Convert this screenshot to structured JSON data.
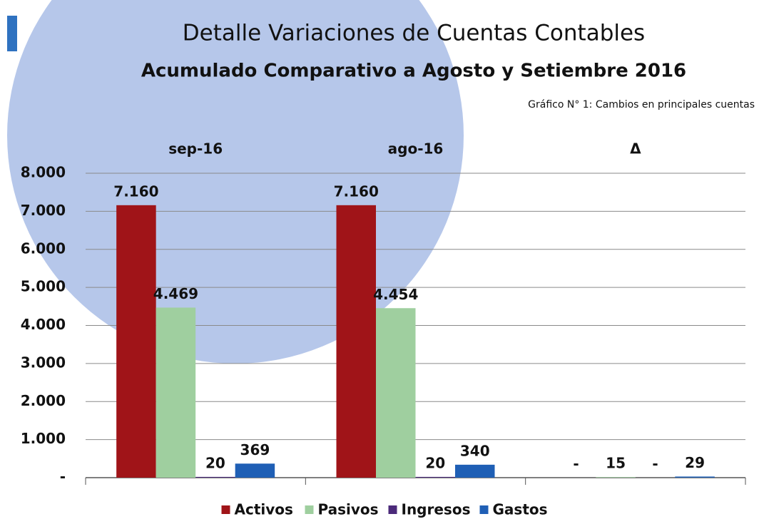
{
  "chart_data": {
    "type": "bar",
    "title": "Detalle  Variaciones de Cuentas Contables",
    "subtitle": "Acumulado Comparativo a Agosto y Setiembre 2016",
    "annotation": "Gráfico N° 1: Cambios en principales cuentas",
    "categories": [
      "sep-16",
      "ago-16",
      "Δ"
    ],
    "series": [
      {
        "name": "Activos",
        "color": "#a01418",
        "values": [
          7160,
          7160,
          0
        ],
        "value_labels": [
          "7.160",
          "7.160",
          "-"
        ]
      },
      {
        "name": "Pasivos",
        "color": "#9fcf9f",
        "values": [
          4469,
          4454,
          15
        ],
        "value_labels": [
          "4.469",
          "4.454",
          "15"
        ]
      },
      {
        "name": "Ingresos",
        "color": "#4b2a7a",
        "values": [
          20,
          20,
          0
        ],
        "value_labels": [
          "20",
          "20",
          "-"
        ]
      },
      {
        "name": "Gastos",
        "color": "#1f5fb5",
        "values": [
          369,
          340,
          29
        ],
        "value_labels": [
          "369",
          "340",
          "29"
        ]
      }
    ],
    "ylim": [
      0,
      8000
    ],
    "yticks": [
      {
        "value": 0,
        "label": "-"
      },
      {
        "value": 1000,
        "label": "1.000"
      },
      {
        "value": 2000,
        "label": "2.000"
      },
      {
        "value": 3000,
        "label": "3.000"
      },
      {
        "value": 4000,
        "label": "4.000"
      },
      {
        "value": 5000,
        "label": "5.000"
      },
      {
        "value": 6000,
        "label": "6.000"
      },
      {
        "value": 7000,
        "label": "7.000"
      },
      {
        "value": 8000,
        "label": "8.000"
      }
    ],
    "grid": true,
    "legend": "bottom"
  }
}
